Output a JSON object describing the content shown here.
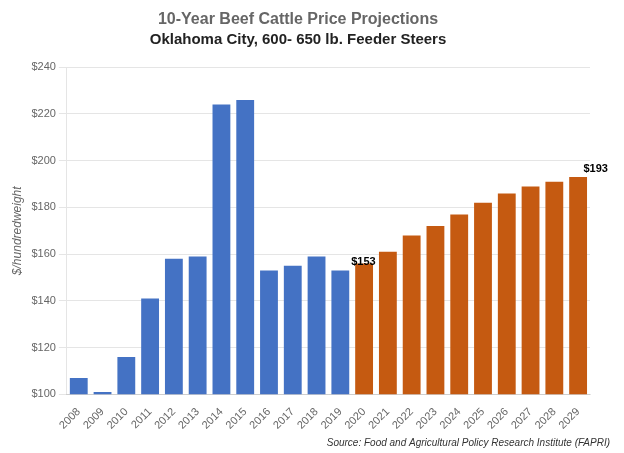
{
  "chart_data": {
    "type": "bar",
    "title": "10-Year Beef Cattle Price Projections",
    "subtitle": "Oklahoma City, 600- 650 lb. Feeder Steers",
    "ylabel": "$/hundredweight",
    "source": "Source: Food and Agricultural Policy Research Institute (FAPRI)",
    "categories": [
      "2008",
      "2009",
      "2010",
      "2011",
      "2012",
      "2013",
      "2014",
      "2015",
      "2016",
      "2017",
      "2018",
      "2019",
      "2020",
      "2021",
      "2022",
      "2023",
      "2024",
      "2025",
      "2026",
      "2027",
      "2028",
      "2029"
    ],
    "values": [
      107,
      101,
      116,
      141,
      158,
      159,
      224,
      226,
      153,
      155,
      159,
      153,
      156,
      161,
      168,
      172,
      177,
      182,
      186,
      189,
      191,
      193
    ],
    "colors": [
      "#4472C4",
      "#4472C4",
      "#4472C4",
      "#4472C4",
      "#4472C4",
      "#4472C4",
      "#4472C4",
      "#4472C4",
      "#4472C4",
      "#4472C4",
      "#4472C4",
      "#4472C4",
      "#C55A11",
      "#C55A11",
      "#C55A11",
      "#C55A11",
      "#C55A11",
      "#C55A11",
      "#C55A11",
      "#C55A11",
      "#C55A11",
      "#C55A11"
    ],
    "ylim": [
      100,
      240
    ],
    "yticks": [
      {
        "value": 100,
        "label": "$100"
      },
      {
        "value": 120,
        "label": "$120"
      },
      {
        "value": 140,
        "label": "$140"
      },
      {
        "value": 160,
        "label": "$160"
      },
      {
        "value": 180,
        "label": "$180"
      },
      {
        "value": 200,
        "label": "$200"
      },
      {
        "value": 220,
        "label": "$220"
      },
      {
        "value": 240,
        "label": "$240"
      }
    ],
    "annotations": [
      {
        "text": "$153",
        "category": "2019",
        "value": 153
      },
      {
        "text": "$193",
        "category": "2029",
        "value": 193
      }
    ],
    "grid": true
  }
}
